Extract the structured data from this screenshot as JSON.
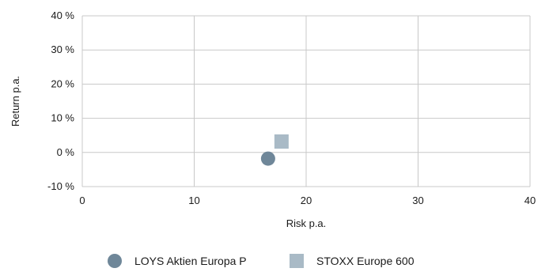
{
  "chart_data": {
    "type": "scatter",
    "xlabel": "Risk p.a.",
    "ylabel": "Return p.a.",
    "xlim": [
      0,
      40
    ],
    "ylim": [
      -10,
      40
    ],
    "x_ticks": [
      0,
      10,
      20,
      30,
      40
    ],
    "x_tick_labels": [
      "0",
      "10",
      "20",
      "30",
      "40"
    ],
    "y_ticks": [
      -10,
      0,
      10,
      20,
      30,
      40
    ],
    "y_tick_labels": [
      "-10 %",
      "0 %",
      "10 %",
      "20 %",
      "30 %",
      "40 %"
    ],
    "grid": true,
    "legend_position": "bottom-center",
    "series": [
      {
        "name": "LOYS Aktien Europa P",
        "marker": "circle",
        "color": "#6f8799",
        "x": 16.6,
        "y": -1.8
      },
      {
        "name": "STOXX Europe 600",
        "marker": "square",
        "color": "#a9bac6",
        "x": 17.8,
        "y": 3.2
      }
    ]
  }
}
